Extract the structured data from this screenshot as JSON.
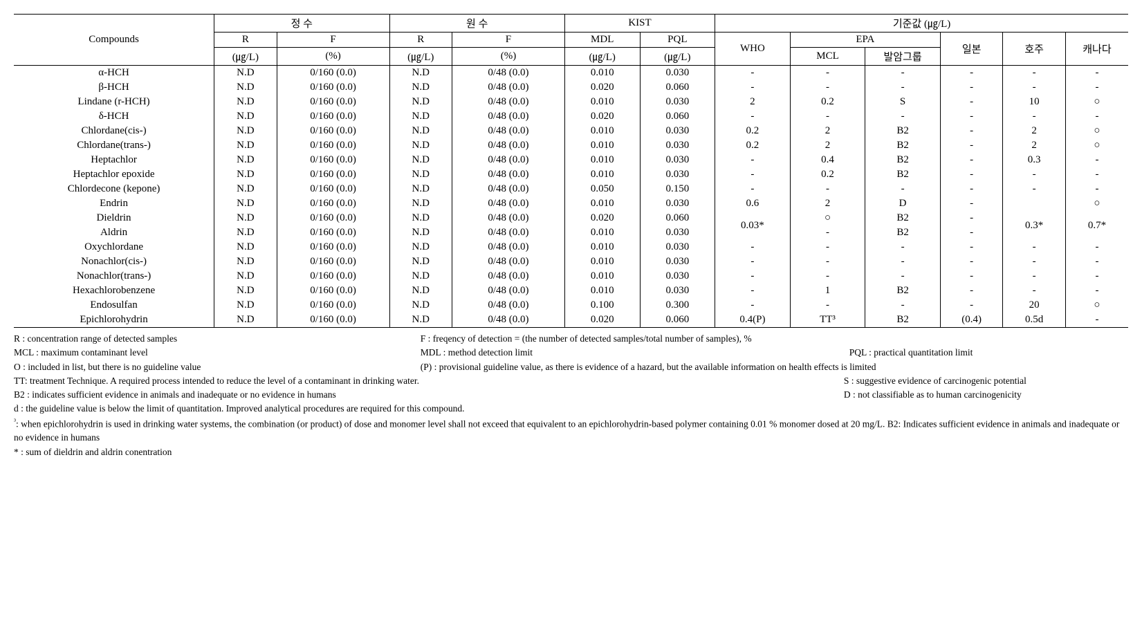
{
  "header": {
    "compounds": "Compounds",
    "group_jeongsu": "정 수",
    "group_wonsu": "원 수",
    "group_kist": "KIST",
    "group_ref": "기준값 (㎍/L)",
    "col_R": "R",
    "col_F": "F",
    "col_MDL": "MDL",
    "col_PQL": "PQL",
    "col_WHO": "WHO",
    "col_EPA": "EPA",
    "col_ilbon": "일본",
    "col_hoju": "호주",
    "col_canada": "캐나다",
    "unit_R": "(㎍/L)",
    "unit_F": "(%)",
    "unit_MDL": "(㎍/L)",
    "unit_PQL": "(㎍/L)",
    "col_MCL": "MCL",
    "col_cancer": "발암그룹"
  },
  "rows": [
    {
      "compound": "α-HCH",
      "r1": "N.D",
      "f1": "0/160 (0.0)",
      "r2": "N.D",
      "f2": "0/48 (0.0)",
      "mdl": "0.010",
      "pql": "0.030",
      "who": "-",
      "mcl": "-",
      "cancer": "-",
      "jp": "-",
      "au": "-",
      "ca": "-"
    },
    {
      "compound": "β-HCH",
      "r1": "N.D",
      "f1": "0/160 (0.0)",
      "r2": "N.D",
      "f2": "0/48 (0.0)",
      "mdl": "0.020",
      "pql": "0.060",
      "who": "-",
      "mcl": "-",
      "cancer": "-",
      "jp": "-",
      "au": "-",
      "ca": "-"
    },
    {
      "compound": "Lindane (r-HCH)",
      "r1": "N.D",
      "f1": "0/160 (0.0)",
      "r2": "N.D",
      "f2": "0/48 (0.0)",
      "mdl": "0.010",
      "pql": "0.030",
      "who": "2",
      "mcl": "0.2",
      "cancer": "S",
      "jp": "-",
      "au": "10",
      "ca": "○"
    },
    {
      "compound": "δ-HCH",
      "r1": "N.D",
      "f1": "0/160 (0.0)",
      "r2": "N.D",
      "f2": "0/48 (0.0)",
      "mdl": "0.020",
      "pql": "0.060",
      "who": "-",
      "mcl": "-",
      "cancer": "-",
      "jp": "-",
      "au": "-",
      "ca": "-"
    },
    {
      "compound": "Chlordane(cis-)",
      "r1": "N.D",
      "f1": "0/160 (0.0)",
      "r2": "N.D",
      "f2": "0/48 (0.0)",
      "mdl": "0.010",
      "pql": "0.030",
      "who": "0.2",
      "mcl": "2",
      "cancer": "B2",
      "jp": "-",
      "au": "2",
      "ca": "○"
    },
    {
      "compound": "Chlordane(trans-)",
      "r1": "N.D",
      "f1": "0/160 (0.0)",
      "r2": "N.D",
      "f2": "0/48 (0.0)",
      "mdl": "0.010",
      "pql": "0.030",
      "who": "0.2",
      "mcl": "2",
      "cancer": "B2",
      "jp": "-",
      "au": "2",
      "ca": "○"
    },
    {
      "compound": "Heptachlor",
      "r1": "N.D",
      "f1": "0/160 (0.0)",
      "r2": "N.D",
      "f2": "0/48 (0.0)",
      "mdl": "0.010",
      "pql": "0.030",
      "who": "-",
      "mcl": "0.4",
      "cancer": "B2",
      "jp": "-",
      "au": "0.3",
      "ca": "-"
    },
    {
      "compound": "Heptachlor epoxide",
      "r1": "N.D",
      "f1": "0/160 (0.0)",
      "r2": "N.D",
      "f2": "0/48 (0.0)",
      "mdl": "0.010",
      "pql": "0.030",
      "who": "-",
      "mcl": "0.2",
      "cancer": "B2",
      "jp": "-",
      "au": "-",
      "ca": "-"
    },
    {
      "compound": "Chlordecone (kepone)",
      "r1": "N.D",
      "f1": "0/160 (0.0)",
      "r2": "N.D",
      "f2": "0/48 (0.0)",
      "mdl": "0.050",
      "pql": "0.150",
      "who": "-",
      "mcl": "-",
      "cancer": "-",
      "jp": "-",
      "au": "-",
      "ca": "-"
    },
    {
      "compound": "Endrin",
      "r1": "N.D",
      "f1": "0/160 (0.0)",
      "r2": "N.D",
      "f2": "0/48 (0.0)",
      "mdl": "0.010",
      "pql": "0.030",
      "who": "0.6",
      "mcl": "2",
      "cancer": "D",
      "jp": "-",
      "au": "",
      "ca": "○"
    },
    {
      "compound": "Dieldrin",
      "r1": "N.D",
      "f1": "0/160 (0.0)",
      "r2": "N.D",
      "f2": "0/48 (0.0)",
      "mdl": "0.020",
      "pql": "0.060",
      "who": "0.03*",
      "who_rowspan": 2,
      "mcl": "○",
      "cancer": "B2",
      "jp": "-",
      "au": "0.3*",
      "au_rowspan": 2,
      "ca": "0.7*",
      "ca_rowspan": 2
    },
    {
      "compound": "Aldrin",
      "r1": "N.D",
      "f1": "0/160 (0.0)",
      "r2": "N.D",
      "f2": "0/48 (0.0)",
      "mdl": "0.010",
      "pql": "0.030",
      "who": null,
      "mcl": "-",
      "cancer": "B2",
      "jp": "-",
      "au": null,
      "ca": null
    },
    {
      "compound": "Oxychlordane",
      "r1": "N.D",
      "f1": "0/160 (0.0)",
      "r2": "N.D",
      "f2": "0/48 (0.0)",
      "mdl": "0.010",
      "pql": "0.030",
      "who": "-",
      "mcl": "-",
      "cancer": "-",
      "jp": "-",
      "au": "-",
      "ca": "-"
    },
    {
      "compound": "Nonachlor(cis-)",
      "r1": "N.D",
      "f1": "0/160 (0.0)",
      "r2": "N.D",
      "f2": "0/48 (0.0)",
      "mdl": "0.010",
      "pql": "0.030",
      "who": "-",
      "mcl": "-",
      "cancer": "-",
      "jp": "-",
      "au": "-",
      "ca": "-"
    },
    {
      "compound": "Nonachlor(trans-)",
      "r1": "N.D",
      "f1": "0/160 (0.0)",
      "r2": "N.D",
      "f2": "0/48 (0.0)",
      "mdl": "0.010",
      "pql": "0.030",
      "who": "-",
      "mcl": "-",
      "cancer": "-",
      "jp": "-",
      "au": "-",
      "ca": "-"
    },
    {
      "compound": "Hexachlorobenzene",
      "r1": "N.D",
      "f1": "0/160 (0.0)",
      "r2": "N.D",
      "f2": "0/48 (0.0)",
      "mdl": "0.010",
      "pql": "0.030",
      "who": "-",
      "mcl": "1",
      "cancer": "B2",
      "jp": "-",
      "au": "-",
      "ca": "-"
    },
    {
      "compound": "Endosulfan",
      "r1": "N.D",
      "f1": "0/160 (0.0)",
      "r2": "N.D",
      "f2": "0/48 (0.0)",
      "mdl": "0.100",
      "pql": "0.300",
      "who": "-",
      "mcl": "-",
      "cancer": "-",
      "jp": "-",
      "au": "20",
      "ca": "○"
    },
    {
      "compound": "Epichlorohydrin",
      "r1": "N.D",
      "f1": "0/160 (0.0)",
      "r2": "N.D",
      "f2": "0/48 (0.0)",
      "mdl": "0.020",
      "pql": "0.060",
      "who": "0.4(P)",
      "mcl": "TT³",
      "cancer": "B2",
      "jp": "(0.4)",
      "au": "0.5d",
      "ca": "-"
    }
  ],
  "notes": {
    "l1a": "R : concentration range of detected samples",
    "l1b": "F : freqency of detection = (the number of detected samples/total number of samples), %",
    "l2a": "MCL : maximum contaminant level",
    "l2b": "MDL : method detection limit",
    "l2c": "PQL : practical quantitation limit",
    "l3a": "O : included in list, but there is no guideline value",
    "l3b": "(P) : provisional guideline value, as there is evidence of a hazard, but the available information on health effects is limited",
    "l4a": "TT: treatment Technique. A required process intended to reduce the level of a contaminant in drinking water.",
    "l4b": "S : suggestive evidence of carcinogenic potential",
    "l5a": "B2 : indicates sufficient evidence in animals and inadequate or no evidence in humans",
    "l5b": "D : not classifiable as to human carcinogenicity",
    "l6": "d : the guideline value is below the limit of quantitation. Improved analytical procedures are required for this compound.",
    "l7a": "³",
    "l7b": ": when epichlorohydrin is used in drinking water systems, the combination (or product) of dose and monomer level shall not exceed that equivalent to an epichlorohydrin-based polymer containing 0.01 % monomer dosed at 20 mg/L. B2: Indicates sufficient evidence in animals and inadequate or no evidence in humans",
    "l8": "* : sum of dieldrin and aldrin conentration"
  },
  "col_widths": {
    "compounds": "16%",
    "r": "5%",
    "f": "9%",
    "mdl": "6%",
    "pql": "6%",
    "who": "6%",
    "mcl": "6%",
    "cancer": "6%",
    "jp": "5%",
    "au": "5%",
    "ca": "5%"
  }
}
